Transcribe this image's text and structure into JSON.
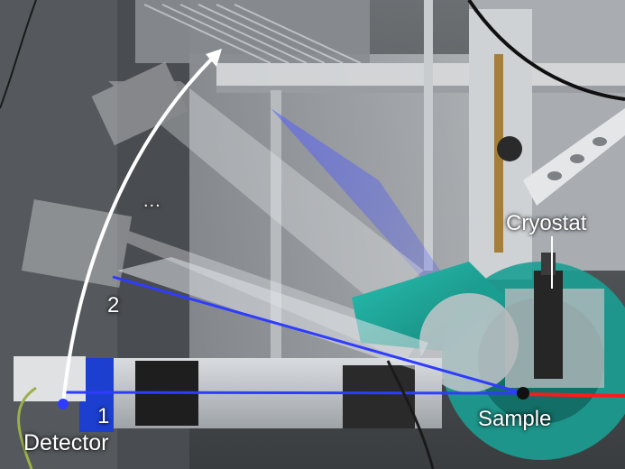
{
  "labels": {
    "detector": "Detector",
    "position_one": "1",
    "position_two": "2",
    "ellipsis": "...",
    "sample": "Sample",
    "cryostat": "Cryostat"
  },
  "colors": {
    "beam_blue": "#2f3cff",
    "beam_red": "#ff1a1a",
    "arc_white": "#ffffff",
    "turquoise": "#1ea89c",
    "detector_blue": "#1c3fd0"
  }
}
